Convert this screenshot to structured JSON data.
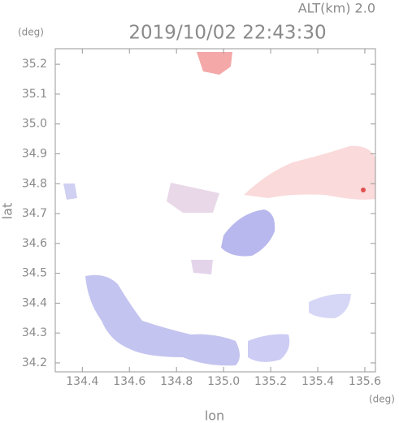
{
  "chart_data": {
    "type": "map",
    "title": "2019/10/02 22:43:30",
    "subtitle": "ALT(km) 2.0",
    "y_unit": "(deg)",
    "x_unit": "(deg)",
    "x_label": "lon",
    "y_label": "lat",
    "xlim": [
      134.285,
      135.645
    ],
    "ylim": [
      34.17,
      35.252
    ],
    "xticks": [
      134.4,
      134.6,
      134.8,
      {
        "value": 135,
        "label": "135.0"
      },
      135.2,
      135.4,
      135.6
    ],
    "yticks": [
      34.2,
      34.3,
      34.4,
      34.5,
      34.6,
      34.7,
      34.8,
      34.9,
      {
        "value": 35,
        "label": "35.0"
      },
      35.1,
      35.2
    ]
  }
}
